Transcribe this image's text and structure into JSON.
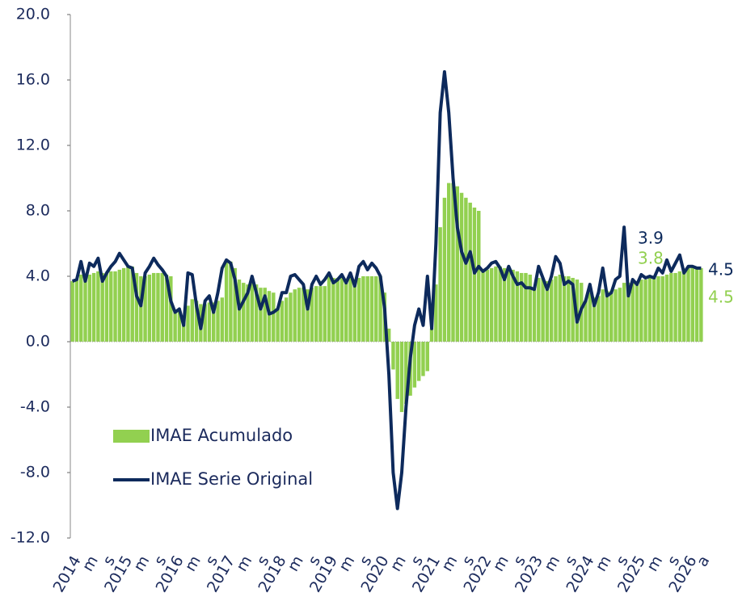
{
  "chart_data": {
    "type": "bar-line",
    "categories": [
      "2014",
      null,
      null,
      null,
      "m",
      null,
      null,
      null,
      "s",
      null,
      null,
      null,
      "2015",
      null,
      null,
      null,
      "m",
      null,
      null,
      null,
      "s",
      null,
      null,
      null,
      "2016",
      null,
      null,
      null,
      "m",
      null,
      null,
      null,
      "s",
      null,
      null,
      null,
      "2017",
      null,
      null,
      null,
      "m",
      null,
      null,
      null,
      "s",
      null,
      null,
      null,
      "2018",
      null,
      null,
      null,
      "m",
      null,
      null,
      null,
      "s",
      null,
      null,
      null,
      "2019",
      null,
      null,
      null,
      "m",
      null,
      null,
      null,
      "s",
      null,
      null,
      null,
      "2020",
      null,
      null,
      null,
      "m",
      null,
      null,
      null,
      "s",
      null,
      null,
      null,
      "2021",
      null,
      null,
      null,
      "m",
      null,
      null,
      null,
      "s",
      null,
      null,
      null,
      "2022",
      null,
      null,
      null,
      "m",
      null,
      null,
      null,
      "s",
      null,
      null,
      null,
      "2023",
      null,
      null,
      null,
      "m",
      null,
      null,
      null,
      "s",
      null,
      null,
      null,
      "2024",
      null,
      null,
      null,
      "m",
      null,
      null,
      null,
      "s",
      null,
      null,
      null,
      "2025",
      null,
      null,
      null,
      "m",
      null,
      null,
      null,
      "s",
      null,
      null,
      null,
      "2026",
      null,
      null,
      "a"
    ],
    "series": [
      {
        "name": "IMAE Acumulado",
        "kind": "bar",
        "color": "#92d050",
        "values": [
          3.7,
          3.8,
          4.1,
          4.0,
          4.1,
          4.2,
          4.3,
          4.2,
          4.2,
          4.3,
          4.3,
          4.4,
          4.5,
          4.6,
          4.6,
          4.2,
          4.0,
          4.0,
          4.1,
          4.2,
          4.2,
          4.2,
          4.1,
          4.0,
          1.8,
          1.9,
          1.6,
          2.2,
          2.6,
          2.5,
          2.3,
          2.3,
          2.4,
          2.4,
          2.5,
          2.7,
          5.0,
          4.9,
          4.5,
          3.8,
          3.6,
          3.5,
          3.6,
          3.5,
          3.3,
          3.3,
          3.1,
          3.0,
          2.0,
          2.5,
          2.7,
          3.0,
          3.2,
          3.3,
          3.3,
          3.2,
          3.3,
          3.4,
          3.4,
          3.4,
          4.2,
          3.9,
          3.9,
          3.9,
          3.8,
          3.9,
          3.8,
          3.9,
          4.0,
          4.0,
          4.0,
          4.0,
          4.0,
          3.0,
          0.8,
          -1.7,
          -3.5,
          -4.3,
          -3.8,
          -3.3,
          -2.8,
          -2.4,
          -2.1,
          -1.8,
          0.8,
          3.5,
          7.0,
          8.8,
          9.7,
          9.7,
          9.5,
          9.1,
          8.8,
          8.5,
          8.2,
          8.0,
          4.3,
          4.4,
          4.5,
          4.6,
          4.6,
          4.5,
          4.5,
          4.4,
          4.3,
          4.2,
          4.2,
          4.1,
          3.2,
          3.9,
          3.9,
          3.7,
          3.8,
          4.0,
          4.1,
          4.0,
          4.0,
          3.9,
          3.8,
          3.6,
          2.5,
          3.0,
          2.7,
          2.8,
          3.2,
          3.1,
          3.1,
          3.2,
          3.3,
          3.6,
          3.6,
          3.6,
          3.5,
          3.8,
          3.8,
          3.9,
          3.9,
          4.0,
          4.0,
          4.1,
          4.2,
          4.2,
          4.3,
          4.3,
          4.6,
          4.6,
          4.5,
          4.5
        ]
      },
      {
        "name": "IMAE Serie Original",
        "kind": "line",
        "color": "#0d2a5c",
        "values": [
          3.7,
          3.8,
          4.9,
          3.7,
          4.8,
          4.6,
          5.1,
          3.7,
          4.2,
          4.6,
          4.9,
          5.4,
          5.0,
          4.6,
          4.5,
          2.8,
          2.2,
          4.2,
          4.6,
          5.1,
          4.7,
          4.4,
          4.0,
          2.5,
          1.8,
          2.0,
          1.0,
          4.2,
          4.1,
          2.2,
          0.8,
          2.5,
          2.8,
          1.8,
          3.0,
          4.5,
          5.0,
          4.8,
          3.8,
          2.0,
          2.5,
          3.0,
          4.0,
          3.0,
          2.0,
          2.8,
          1.7,
          1.8,
          2.0,
          3.0,
          3.0,
          4.0,
          4.1,
          3.8,
          3.5,
          2.0,
          3.5,
          4.0,
          3.5,
          3.8,
          4.2,
          3.6,
          3.8,
          4.1,
          3.6,
          4.2,
          3.4,
          4.6,
          4.9,
          4.4,
          4.8,
          4.5,
          4.0,
          2.0,
          -2.0,
          -8.0,
          -10.2,
          -8.0,
          -4.0,
          -1.0,
          1.0,
          2.0,
          1.0,
          4.0,
          0.8,
          6.0,
          14.0,
          16.5,
          14.0,
          10.0,
          7.0,
          5.5,
          4.8,
          5.5,
          4.2,
          4.6,
          4.3,
          4.5,
          4.8,
          4.9,
          4.5,
          3.8,
          4.6,
          4.0,
          3.5,
          3.6,
          3.3,
          3.3,
          3.2,
          4.6,
          3.9,
          3.2,
          4.0,
          5.2,
          4.8,
          3.5,
          3.7,
          3.5,
          1.2,
          2.0,
          2.5,
          3.5,
          2.2,
          3.0,
          4.5,
          2.8,
          3.0,
          3.8,
          4.0,
          7.0,
          2.8,
          3.8,
          3.5,
          4.1,
          3.9,
          4.0,
          3.9,
          4.5,
          4.2,
          5.0,
          4.3,
          4.8,
          5.3,
          4.2,
          4.6,
          4.6,
          4.5,
          4.5
        ]
      }
    ],
    "ylim": [
      -12,
      20
    ],
    "yticks": [
      {
        "value": -12,
        "label": "-12.0"
      },
      {
        "value": -8,
        "label": "-8.0"
      },
      {
        "value": -4,
        "label": "-4.0"
      },
      {
        "value": 0,
        "label": "0.0"
      },
      {
        "value": 4,
        "label": "4.0"
      },
      {
        "value": 8,
        "label": "8.0"
      },
      {
        "value": 12,
        "label": "12.0"
      },
      {
        "value": 16,
        "label": "16.0"
      },
      {
        "value": 20,
        "label": "20.0"
      }
    ],
    "annotations": [
      {
        "text": "3.9",
        "color": "#0d2a5c"
      },
      {
        "text": "3.8",
        "color": "#92d050"
      },
      {
        "text": "4.5",
        "color": "#0d2a5c"
      },
      {
        "text": "4.5",
        "color": "#92d050"
      }
    ]
  }
}
